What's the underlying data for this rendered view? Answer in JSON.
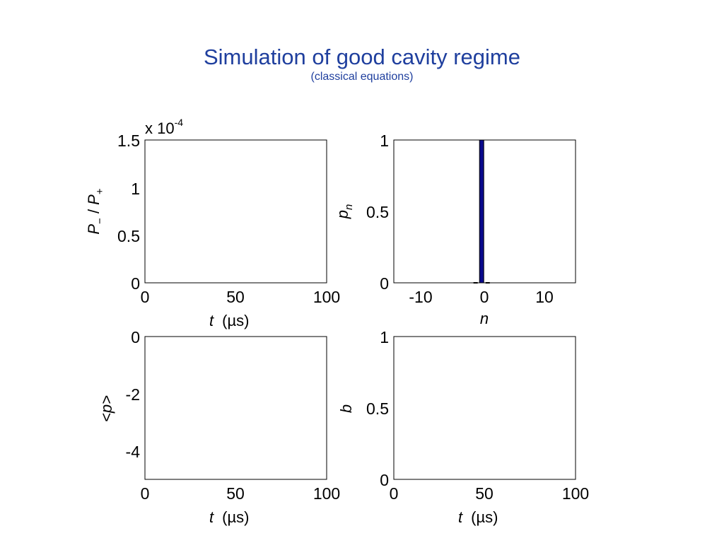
{
  "slide": {
    "title": "Simulation of good cavity regime",
    "subtitle": "(classical equations)"
  },
  "chart_data": [
    {
      "id": "ratio",
      "type": "line",
      "xlabel": "t",
      "xunit": "(µs)",
      "ylabel_base": "P",
      "ylabel_sub1": "−",
      "ylabel_sep": " / ",
      "ylabel_base2": "P",
      "ylabel_sub2": "+",
      "exponent_prefix": "x 10",
      "exponent_power": "-4",
      "xlim": [
        0,
        100
      ],
      "ylim": [
        0,
        1.5
      ],
      "xticks": [
        "0",
        "50",
        "100"
      ],
      "yticks": [
        "0",
        "0.5",
        "1",
        "1.5"
      ],
      "series": []
    },
    {
      "id": "distribution",
      "type": "bar",
      "xlabel": "n",
      "ylabel_base": "p",
      "ylabel_sub": "n",
      "xlim": [
        -14.5,
        15.5
      ],
      "ylim": [
        0,
        1
      ],
      "xticks": [
        "-10",
        "0",
        "10"
      ],
      "yticks": [
        "0",
        "0.5",
        "1"
      ],
      "x": [
        -1,
        0,
        1
      ],
      "values": [
        0,
        1,
        0
      ],
      "bar_color": "#0a0a8c"
    },
    {
      "id": "mean-p",
      "type": "line",
      "xlabel": "t",
      "xunit": "(µs)",
      "ylabel": "<p>",
      "xlim": [
        0,
        100
      ],
      "ylim": [
        -5,
        0
      ],
      "xticks": [
        "0",
        "50",
        "100"
      ],
      "yticks": [
        "0",
        "-2",
        "-4"
      ],
      "series": []
    },
    {
      "id": "b",
      "type": "line",
      "xlabel": "t",
      "xunit": "(µs)",
      "ylabel": "b",
      "xlim": [
        0,
        100
      ],
      "ylim": [
        0,
        1
      ],
      "xticks": [
        "0",
        "50",
        "100"
      ],
      "yticks": [
        "0",
        "0.5",
        "1"
      ],
      "series": []
    }
  ]
}
